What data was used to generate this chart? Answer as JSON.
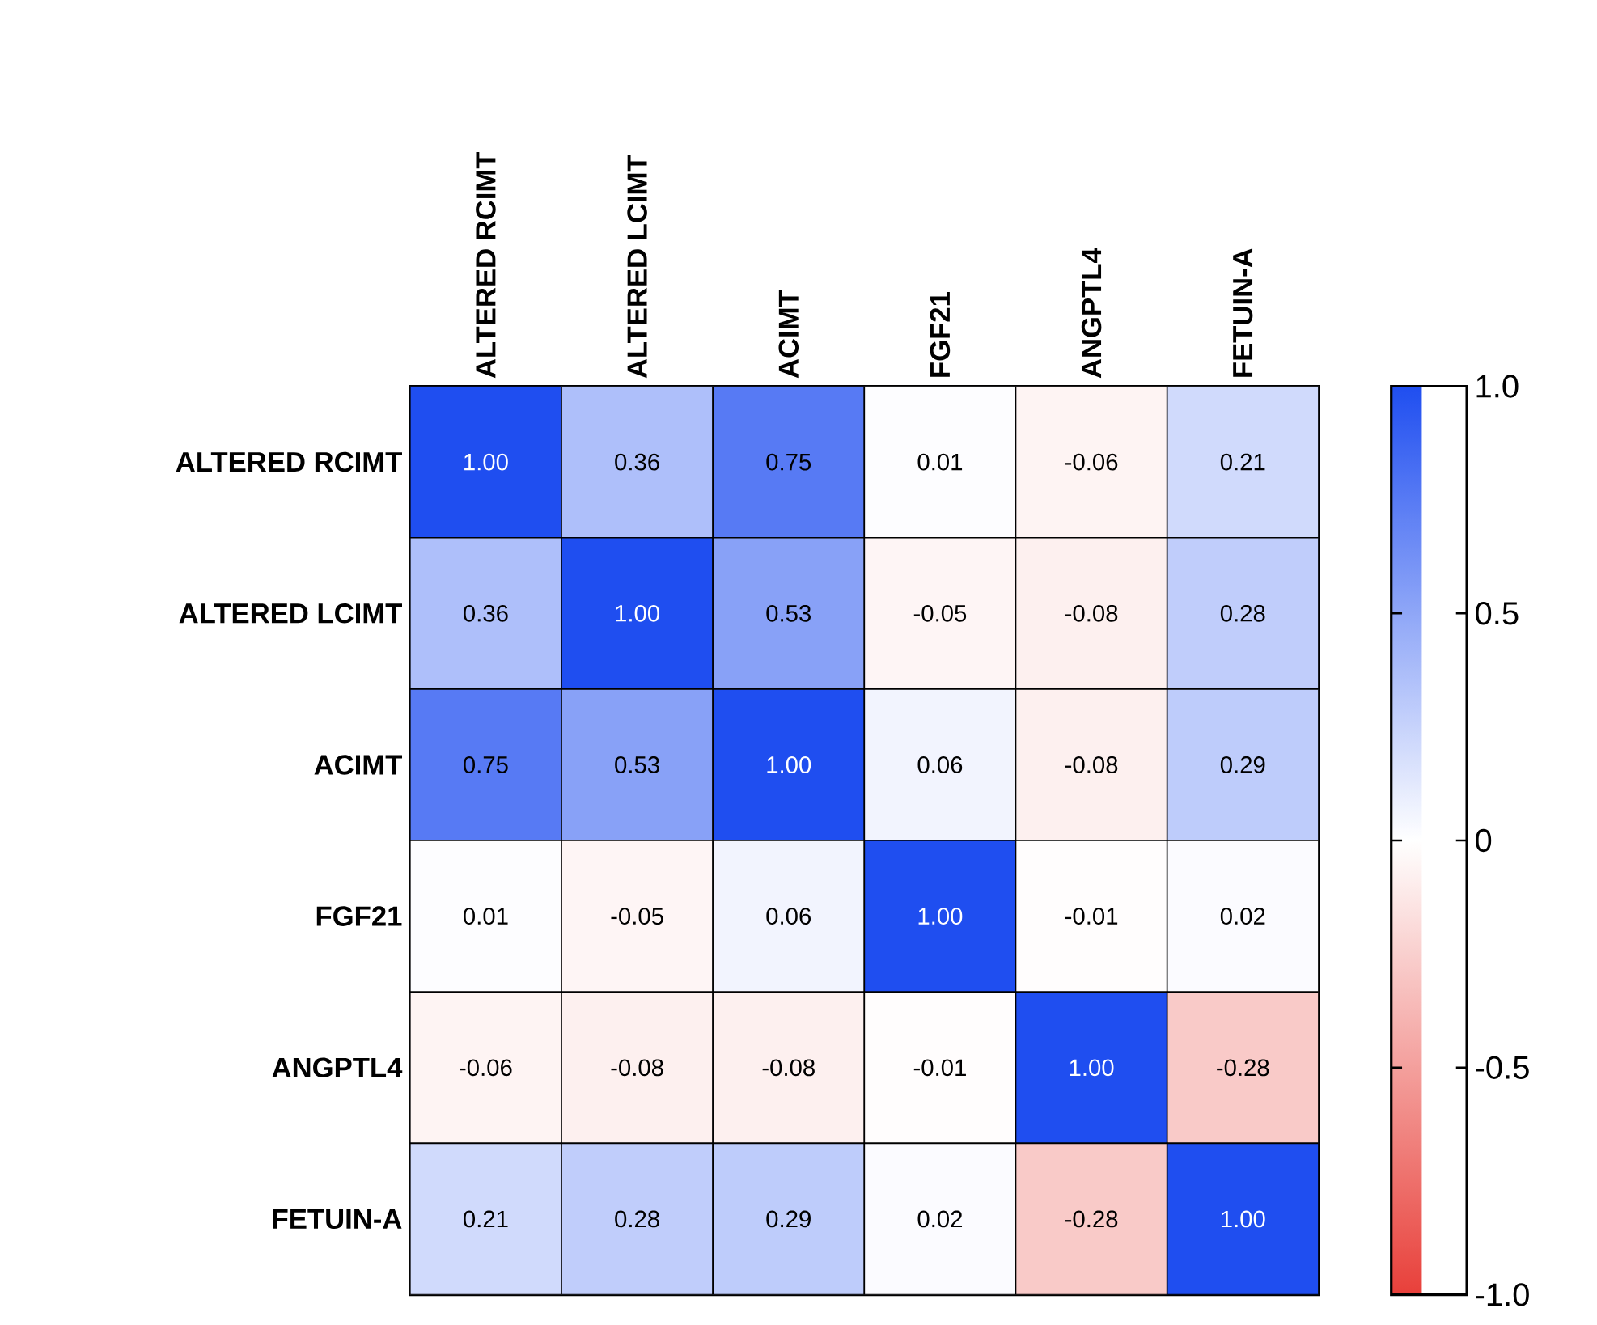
{
  "chart_data": {
    "type": "heatmap",
    "categories": [
      "ALTERED RCIMT",
      "ALTERED LCIMT",
      "ACIMT",
      "FGF21",
      "ANGPTL4",
      "FETUIN-A"
    ],
    "y_categories": [
      "ALTERED RCIMT",
      "ALTERED LCIMT",
      "ACIMT",
      "FGF21",
      "ANGPTL4",
      "FETUIN-A"
    ],
    "cells": [
      [
        1.0,
        0.36,
        0.75,
        0.01,
        -0.06,
        0.21
      ],
      [
        0.36,
        1.0,
        0.53,
        -0.05,
        -0.08,
        0.28
      ],
      [
        0.75,
        0.53,
        1.0,
        0.06,
        -0.08,
        0.29
      ],
      [
        0.01,
        -0.05,
        0.06,
        1.0,
        -0.01,
        0.02
      ],
      [
        -0.06,
        -0.08,
        -0.08,
        -0.01,
        1.0,
        -0.28
      ],
      [
        0.21,
        0.28,
        0.29,
        0.02,
        -0.28,
        1.0
      ]
    ],
    "cell_labels": [
      [
        "1.00",
        "0.36",
        "0.75",
        "0.01",
        "-0.06",
        "0.21"
      ],
      [
        "0.36",
        "1.00",
        "0.53",
        "-0.05",
        "-0.08",
        "0.28"
      ],
      [
        "0.75",
        "0.53",
        "1.00",
        "0.06",
        "-0.08",
        "0.29"
      ],
      [
        "0.01",
        "-0.05",
        "0.06",
        "1.00",
        "-0.01",
        "0.02"
      ],
      [
        "-0.06",
        "-0.08",
        "-0.08",
        "-0.01",
        "1.00",
        "-0.28"
      ],
      [
        "0.21",
        "0.28",
        "0.29",
        "0.02",
        "-0.28",
        "1.00"
      ]
    ],
    "colors": [
      "#e8403a",
      "#ffffff",
      "#1f4ef0"
    ],
    "clim": [
      -1,
      1
    ],
    "cticks": [
      {
        "value": -1,
        "label": "-1.0"
      },
      -0.5,
      0,
      0.5,
      {
        "value": 1,
        "label": "1.0"
      }
    ]
  }
}
